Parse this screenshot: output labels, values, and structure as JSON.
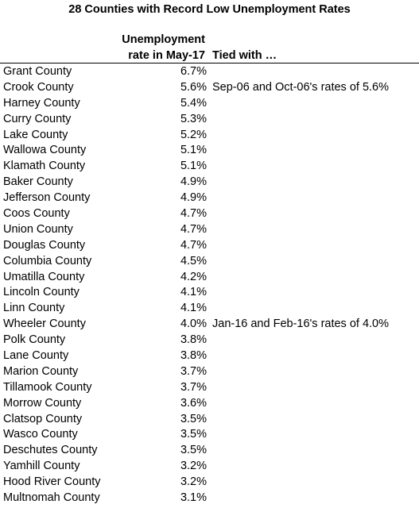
{
  "chart_data": {
    "type": "table",
    "title": "28 Counties with Record Low Unemployment Rates",
    "columns": {
      "county": "",
      "rate": [
        "Unemployment",
        "rate in May-17"
      ],
      "tied": "Tied with …"
    },
    "rows": [
      {
        "county": "Grant County",
        "rate": "6.7%",
        "tied": ""
      },
      {
        "county": "Crook County",
        "rate": "5.6%",
        "tied": "Sep-06 and Oct-06's rates of 5.6%"
      },
      {
        "county": "Harney County",
        "rate": "5.4%",
        "tied": ""
      },
      {
        "county": "Curry County",
        "rate": "5.3%",
        "tied": ""
      },
      {
        "county": "Lake County",
        "rate": "5.2%",
        "tied": ""
      },
      {
        "county": "Wallowa County",
        "rate": "5.1%",
        "tied": ""
      },
      {
        "county": "Klamath County",
        "rate": "5.1%",
        "tied": ""
      },
      {
        "county": "Baker County",
        "rate": "4.9%",
        "tied": ""
      },
      {
        "county": "Jefferson County",
        "rate": "4.9%",
        "tied": ""
      },
      {
        "county": "Coos County",
        "rate": "4.7%",
        "tied": ""
      },
      {
        "county": "Union County",
        "rate": "4.7%",
        "tied": ""
      },
      {
        "county": "Douglas County",
        "rate": "4.7%",
        "tied": ""
      },
      {
        "county": "Columbia County",
        "rate": "4.5%",
        "tied": ""
      },
      {
        "county": "Umatilla County",
        "rate": "4.2%",
        "tied": ""
      },
      {
        "county": "Lincoln County",
        "rate": "4.1%",
        "tied": ""
      },
      {
        "county": "Linn County",
        "rate": "4.1%",
        "tied": ""
      },
      {
        "county": "Wheeler County",
        "rate": "4.0%",
        "tied": "Jan-16 and Feb-16's rates of 4.0%"
      },
      {
        "county": "Polk County",
        "rate": "3.8%",
        "tied": ""
      },
      {
        "county": "Lane County",
        "rate": "3.8%",
        "tied": ""
      },
      {
        "county": "Marion County",
        "rate": "3.7%",
        "tied": ""
      },
      {
        "county": "Tillamook County",
        "rate": "3.7%",
        "tied": ""
      },
      {
        "county": "Morrow County",
        "rate": "3.6%",
        "tied": ""
      },
      {
        "county": "Clatsop County",
        "rate": "3.5%",
        "tied": ""
      },
      {
        "county": "Wasco County",
        "rate": "3.5%",
        "tied": ""
      },
      {
        "county": "Deschutes County",
        "rate": "3.5%",
        "tied": ""
      },
      {
        "county": "Yamhill County",
        "rate": "3.2%",
        "tied": ""
      },
      {
        "county": "Hood River County",
        "rate": "3.2%",
        "tied": ""
      },
      {
        "county": "Multnomah County",
        "rate": "3.1%",
        "tied": ""
      }
    ]
  }
}
